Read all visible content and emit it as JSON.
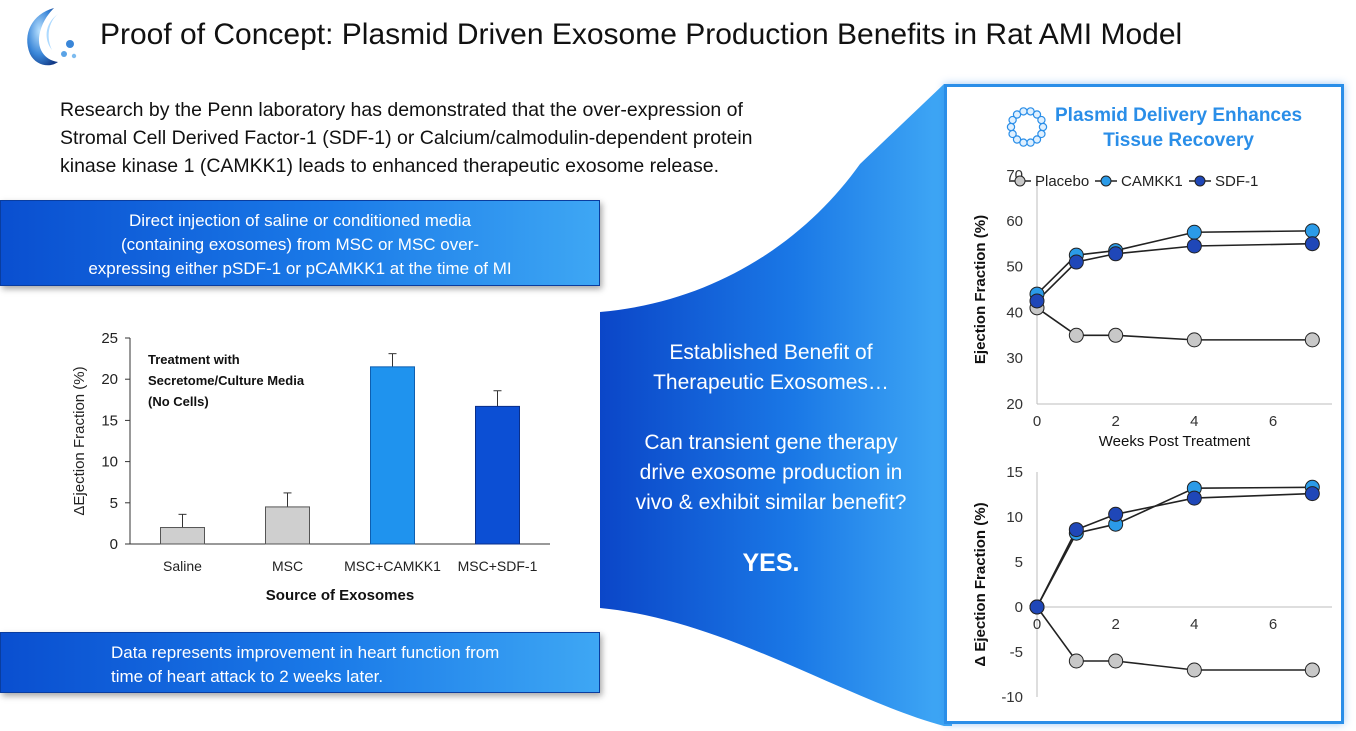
{
  "header": {
    "title": "Proof of Concept: Plasmid Driven Exosome Production Benefits in Rat AMI Model"
  },
  "intro": {
    "line1": "Research by the Penn laboratory has demonstrated that the over-expression of",
    "line2": "Stromal Cell Derived Factor-1 (SDF-1) or Calcium/calmodulin-dependent protein",
    "line3": "kinase kinase 1 (CAMKK1) leads to enhanced therapeutic exosome release."
  },
  "box_top": {
    "line1": "Direct injection of saline or conditioned media",
    "line2": "(containing exosomes) from MSC or MSC over-",
    "line3": "expressing either pSDF-1 or pCAMKK1 at the time of MI"
  },
  "box_bottom": {
    "line1": "Data represents improvement in heart function from",
    "line2": "time of heart attack to 2 weeks later."
  },
  "center": {
    "line1": "Established Benefit of",
    "line2": "Therapeutic Exosomes…",
    "line3": "Can transient gene therapy",
    "line4": "drive exosome production in",
    "line5": "vivo & exhibit similar benefit?",
    "answer": "YES."
  },
  "panel": {
    "title_line1": "Plasmid Delivery Enhances",
    "title_line2": "Tissue Recovery"
  },
  "colors": {
    "placebo": "#c8c8c8",
    "camkk1": "#2b9be8",
    "sdf1": "#1f47b8",
    "bar_gray": "#cfcfcf",
    "bar_light_blue": "#1f93ee",
    "bar_dark_blue": "#0c4fd4",
    "accent": "#2a8ee8"
  },
  "chart_data": [
    {
      "type": "bar",
      "title": "",
      "annotation": [
        "Treatment with",
        "Secretome/Culture Media",
        "(No Cells)"
      ],
      "categories": [
        "Saline",
        "MSC",
        "MSC+CAMKK1",
        "MSC+SDF-1"
      ],
      "values": [
        2,
        4.5,
        21.5,
        16.7
      ],
      "errors": [
        1.6,
        1.7,
        1.6,
        1.9
      ],
      "xlabel": "Source of Exosomes",
      "ylabel": "ΔEjection Fraction (%)",
      "ylim": [
        0,
        25
      ],
      "yticks": [
        0,
        5,
        10,
        15,
        20,
        25
      ],
      "grid": false
    },
    {
      "type": "line",
      "xlabel": "Weeks Post Treatment",
      "ylabel": "Ejection Fraction (%)",
      "xlim": [
        0,
        7.5
      ],
      "ylim": [
        20,
        70
      ],
      "xticks": [
        0,
        2,
        4,
        6
      ],
      "yticks": [
        20,
        30,
        40,
        50,
        60,
        70
      ],
      "legend": "top",
      "grid": false,
      "x": [
        0,
        1,
        2,
        4,
        7
      ],
      "series": [
        {
          "name": "Placebo",
          "values": [
            41,
            35,
            35,
            34,
            34
          ]
        },
        {
          "name": "CAMKK1",
          "values": [
            44,
            52.5,
            53.5,
            57.5,
            57.8
          ]
        },
        {
          "name": "SDF-1",
          "values": [
            42.5,
            51,
            52.8,
            54.5,
            55
          ]
        }
      ]
    },
    {
      "type": "line",
      "xlabel": "",
      "ylabel": "Δ Ejection Fraction (%)",
      "xlim": [
        0,
        7.5
      ],
      "ylim": [
        -10,
        15
      ],
      "xticks": [
        0,
        2,
        4,
        6
      ],
      "yticks": [
        -10,
        -5,
        0,
        5,
        10,
        15
      ],
      "grid": false,
      "x": [
        0,
        1,
        2,
        4,
        7
      ],
      "series": [
        {
          "name": "Placebo",
          "values": [
            0,
            -6,
            -6,
            -7,
            -7
          ]
        },
        {
          "name": "CAMKK1",
          "values": [
            0,
            8.2,
            9.2,
            13.2,
            13.3
          ]
        },
        {
          "name": "SDF-1",
          "values": [
            0,
            8.6,
            10.3,
            12.1,
            12.6
          ]
        }
      ]
    }
  ]
}
